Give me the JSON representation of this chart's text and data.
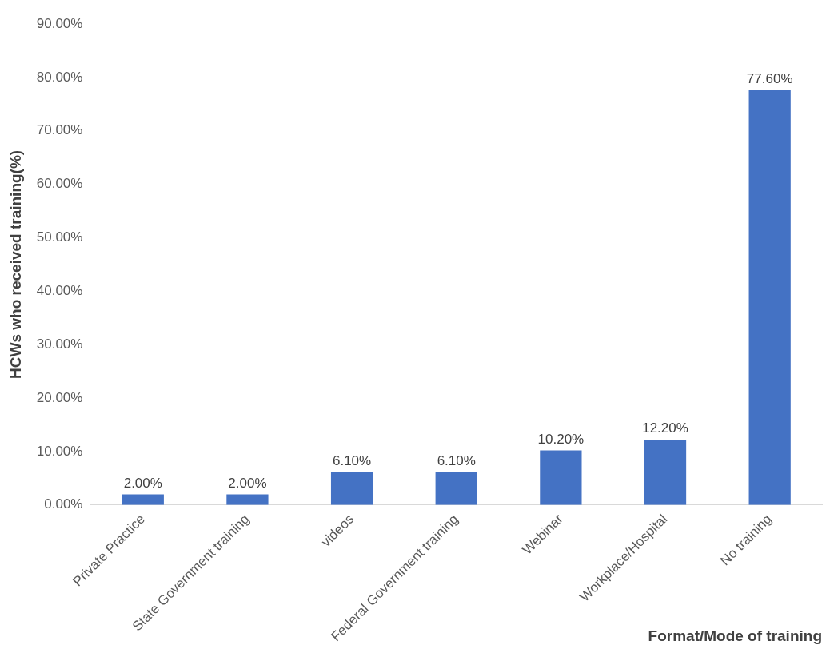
{
  "chart_data": {
    "type": "bar",
    "xlabel": "Format/Mode of training",
    "ylabel": "HCWs who received training(%)",
    "categories": [
      "Private Practice",
      "State Government training",
      "videos",
      "Federal Government training",
      "Webinar",
      "Workplace/Hospital",
      "No training"
    ],
    "values": [
      2,
      2,
      6.1,
      6.1,
      10.2,
      12.2,
      77.6
    ],
    "value_labels": [
      "2.00%",
      "2.00%",
      "6.10%",
      "6.10%",
      "10.20%",
      "12.20%",
      "77.60%"
    ],
    "color": "#4472c4",
    "ylim": [
      0,
      90
    ],
    "yticks": [
      {
        "value": 0,
        "label": "0.00%"
      },
      {
        "value": 10,
        "label": "10.00%"
      },
      {
        "value": 20,
        "label": "20.00%"
      },
      {
        "value": 30,
        "label": "30.00%"
      },
      {
        "value": 40,
        "label": "40.00%"
      },
      {
        "value": 50,
        "label": "50.00%"
      },
      {
        "value": 60,
        "label": "60.00%"
      },
      {
        "value": 70,
        "label": "70.00%"
      },
      {
        "value": 80,
        "label": "80.00%"
      },
      {
        "value": 90,
        "label": "90.00%"
      }
    ],
    "grid": false,
    "legend": false
  }
}
